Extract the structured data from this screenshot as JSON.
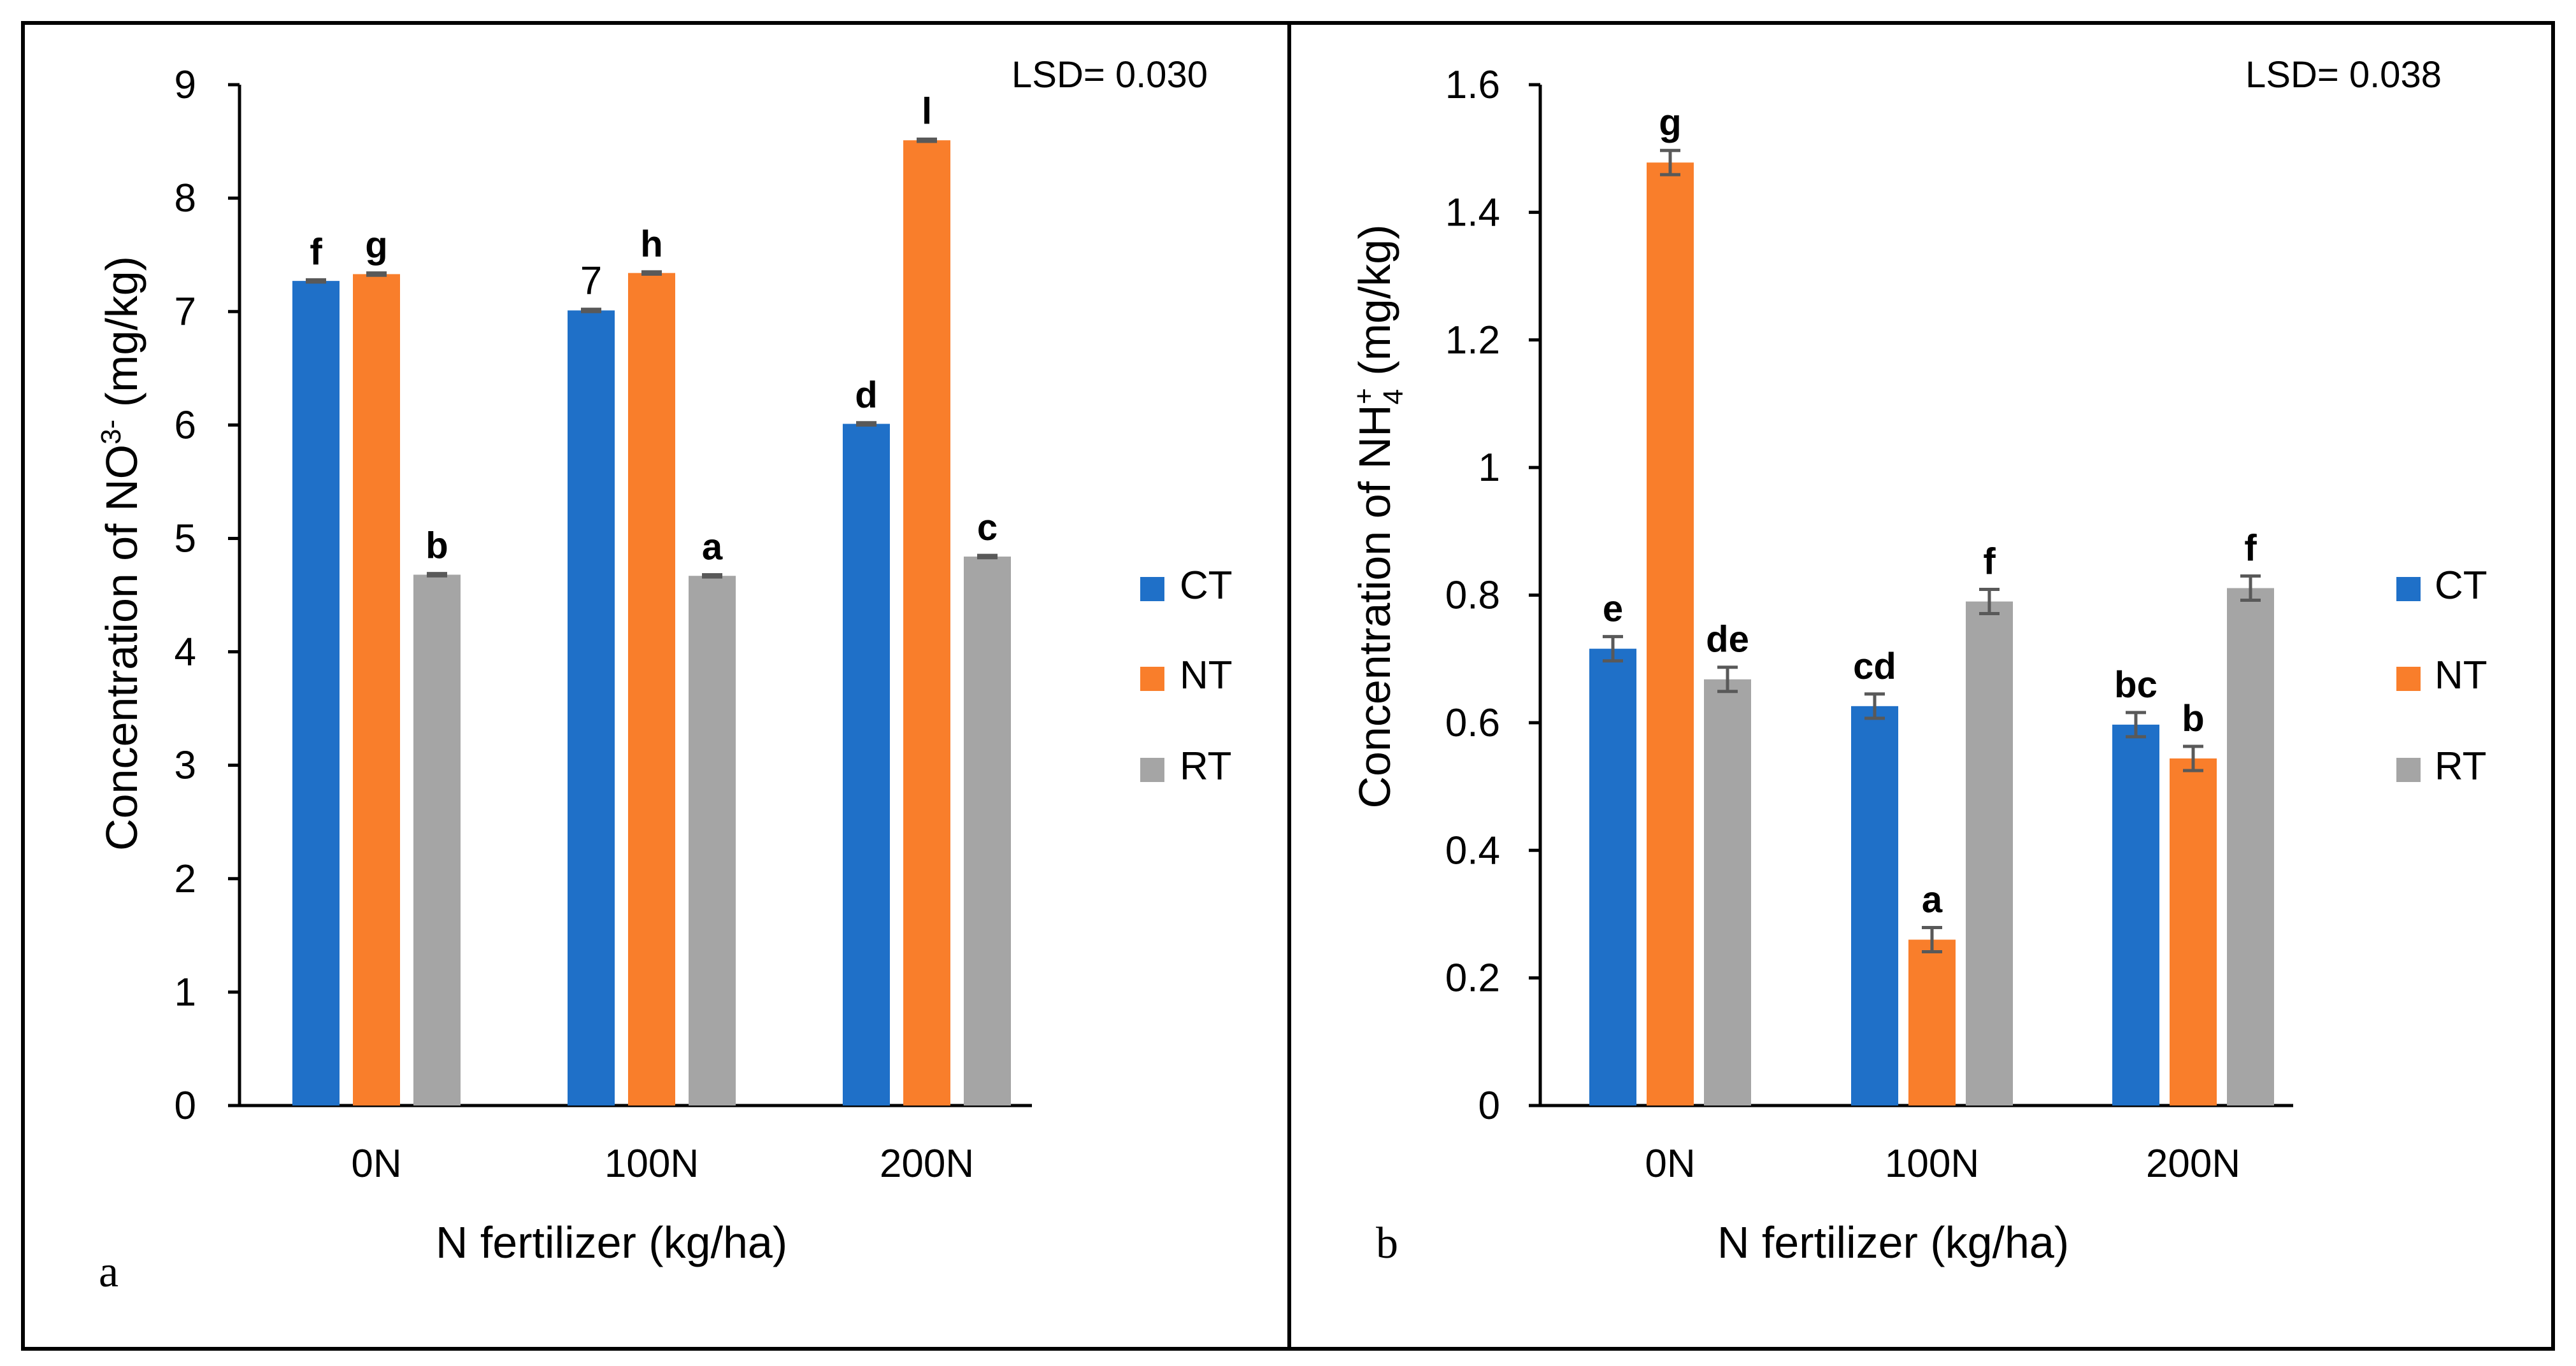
{
  "chart_data": [
    {
      "type": "bar",
      "panel_label": "a",
      "lsd_text": "LSD= 0.030",
      "ylabel": "Concentration of NO",
      "ylabel_sup": "3-",
      "ylabel_sub": "",
      "ylabel_unit": " (mg/kg)",
      "xlabel": "N fertilizer (kg/ha)",
      "categories": [
        "0N",
        "100N",
        "200N"
      ],
      "ylim": [
        0,
        9
      ],
      "yticks": [
        0,
        1,
        2,
        3,
        4,
        5,
        6,
        7,
        8,
        9
      ],
      "ytick_labels": [
        "0",
        "1",
        "2",
        "3",
        "4",
        "5",
        "6",
        "7",
        "8",
        "9"
      ],
      "series": [
        {
          "name": "CT",
          "color": "#1f70c8",
          "values": [
            7.27,
            7.01,
            6.01
          ],
          "errors": [
            0.01,
            0.01,
            0.01
          ],
          "labels": [
            "f",
            "7",
            "d"
          ]
        },
        {
          "name": "NT",
          "color": "#f97e2b",
          "values": [
            7.33,
            7.34,
            8.51
          ],
          "errors": [
            0.01,
            0.01,
            0.01
          ],
          "labels": [
            "g",
            "h",
            "l"
          ]
        },
        {
          "name": "RT",
          "color": "#a5a5a5",
          "values": [
            4.68,
            4.67,
            4.84
          ],
          "errors": [
            0.01,
            0.01,
            0.01
          ],
          "labels": [
            "b",
            "a",
            "c"
          ]
        }
      ]
    },
    {
      "type": "bar",
      "panel_label": "b",
      "lsd_text": "LSD= 0.038",
      "ylabel": "Concentration of NH",
      "ylabel_sup": "+",
      "ylabel_sub": "4",
      "ylabel_unit": " (mg/kg)",
      "xlabel": "N fertilizer (kg/ha)",
      "categories": [
        "0N",
        "100N",
        "200N"
      ],
      "ylim": [
        0,
        1.6
      ],
      "yticks": [
        0,
        0.2,
        0.4,
        0.6,
        0.8,
        1.0,
        1.2,
        1.4,
        1.6
      ],
      "ytick_labels": [
        "0",
        "0.2",
        "0.4",
        "0.6",
        "0.8",
        "1",
        "1.2",
        "1.4",
        "1.6"
      ],
      "series": [
        {
          "name": "CT",
          "color": "#1f70c8",
          "values": [
            0.716,
            0.626,
            0.597
          ],
          "errors": [
            0.019,
            0.019,
            0.019
          ],
          "labels": [
            "e",
            "cd",
            "bc"
          ]
        },
        {
          "name": "NT",
          "color": "#f97e2b",
          "values": [
            1.478,
            0.26,
            0.544
          ],
          "errors": [
            0.019,
            0.019,
            0.019
          ],
          "labels": [
            "g",
            "a",
            "b"
          ]
        },
        {
          "name": "RT",
          "color": "#a5a5a5",
          "values": [
            0.668,
            0.79,
            0.811
          ],
          "errors": [
            0.019,
            0.019,
            0.019
          ],
          "labels": [
            "de",
            "f",
            "f"
          ]
        }
      ]
    }
  ]
}
